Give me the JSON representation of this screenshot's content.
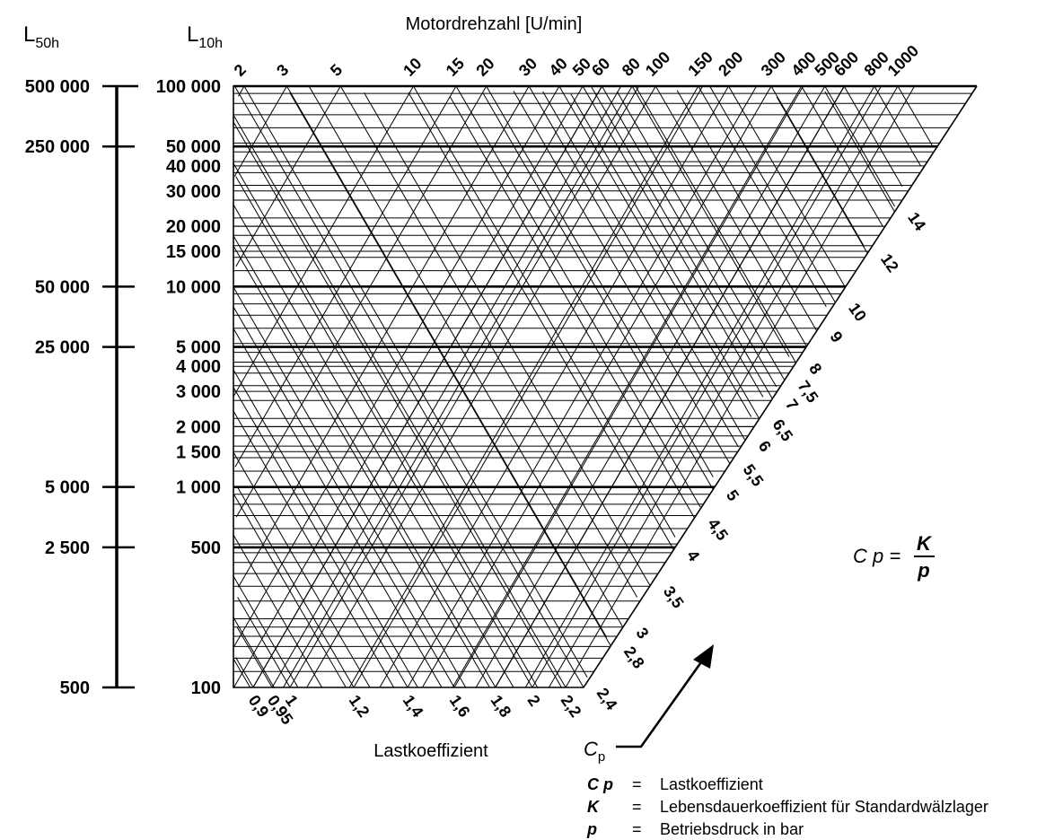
{
  "chart_data": {
    "type": "nomogram",
    "title": "",
    "top_axis_title": "Motordrehzahl [U/min]",
    "bottom_axis_title": "Lastkoeffizient",
    "left_outer_header_main": "L",
    "left_outer_header_sub": "50h",
    "left_inner_header_main": "L",
    "left_inner_header_sub": "10h",
    "l50h_ticks": [
      "500 000",
      "250 000",
      "50 000",
      "25 000",
      "5 000",
      "2 500",
      "500"
    ],
    "l50h_values": [
      500000,
      250000,
      50000,
      25000,
      5000,
      2500,
      500
    ],
    "l10h_ticks": [
      "100 000",
      "50 000",
      "40 000",
      "30 000",
      "20 000",
      "15 000",
      "10 000",
      "5 000",
      "4 000",
      "3 000",
      "2 000",
      "1 500",
      "1 000",
      "500",
      "100"
    ],
    "l10h_values": [
      100000,
      50000,
      40000,
      30000,
      20000,
      15000,
      10000,
      5000,
      4000,
      3000,
      2000,
      1500,
      1000,
      500,
      100
    ],
    "speed_ticks": [
      "2",
      "3",
      "5",
      "10",
      "15",
      "20",
      "30",
      "40",
      "50",
      "60",
      "80",
      "100",
      "150",
      "200",
      "300",
      "400",
      "500",
      "600",
      "800",
      "1000"
    ],
    "speed_values": [
      2,
      3,
      5,
      10,
      15,
      20,
      30,
      40,
      50,
      60,
      80,
      100,
      150,
      200,
      300,
      400,
      500,
      600,
      800,
      1000
    ],
    "load_bottom_ticks": [
      "0,9",
      "0,95",
      "1",
      "1,2",
      "1,4",
      "1,6",
      "1,8",
      "2",
      "2,2"
    ],
    "load_bottom_values": [
      0.9,
      0.95,
      1,
      1.2,
      1.4,
      1.6,
      1.8,
      2,
      2.2
    ],
    "load_diagonal_ticks": [
      "2,4",
      "2,8",
      "3",
      "3,5",
      "4",
      "4,5",
      "5",
      "5,5",
      "6",
      "6,5",
      "7",
      "7,5",
      "8",
      "9",
      "10",
      "12",
      "14"
    ],
    "load_diagonal_values": [
      2.4,
      2.8,
      3,
      3.5,
      4,
      4.5,
      5,
      5.5,
      6,
      6.5,
      7,
      7.5,
      8,
      9,
      10,
      12,
      14
    ],
    "arrow_label_main": "C",
    "arrow_label_sub": "p",
    "formula": {
      "lhs": "C p =",
      "numerator": "K",
      "denominator": "p"
    },
    "legend": [
      {
        "symbol": "C p",
        "eq": "=",
        "text": "Lastkoeffizient"
      },
      {
        "symbol": "K",
        "eq": "=",
        "text": "Lebensdauerkoeffizient für Standardwälzlager"
      },
      {
        "symbol": "p",
        "eq": "=",
        "text": "Betriebsdruck in bar"
      }
    ]
  }
}
